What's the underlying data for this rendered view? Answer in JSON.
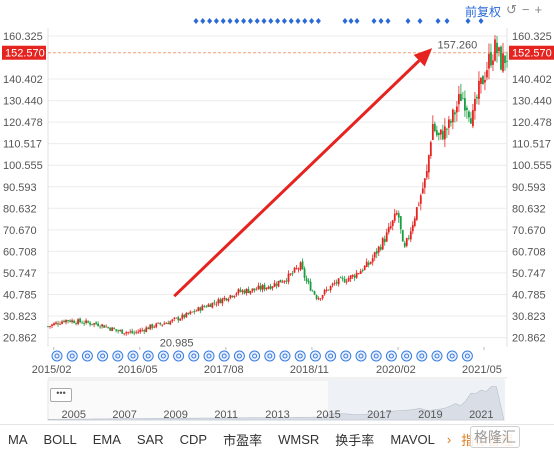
{
  "header": {
    "adjust_label": "前复权",
    "icons": [
      "undo-icon",
      "minus-icon",
      "plus-icon"
    ]
  },
  "chart_data": {
    "type": "candlestick",
    "x_tick_labels": [
      "2015/02",
      "2016/05",
      "2017/08",
      "2018/11",
      "2020/02",
      "2021/05"
    ],
    "y_ticks": [
      160.325,
      140.402,
      130.44,
      120.478,
      110.517,
      100.555,
      90.593,
      80.632,
      70.67,
      60.708,
      50.747,
      40.785,
      30.823,
      20.862
    ],
    "y_ticks_left": [
      160.325,
      140.402,
      130.44,
      120.478,
      110.517,
      100.555,
      90.593,
      80.632,
      70.67,
      60.708,
      50.747,
      40.785,
      30.823,
      20.862
    ],
    "y_ticks_right": [
      160.325,
      140.402,
      130.44,
      120.478,
      110.517,
      100.555,
      90.593,
      80.632,
      70.67,
      60.708,
      50.747,
      40.785,
      30.823,
      20.862
    ],
    "y_tick_labels": [
      "160.325",
      "140.402",
      "130.440",
      "120.478",
      "110.517",
      "100.555",
      "90.593",
      "80.632",
      "70.670",
      "60.708",
      "50.747",
      "40.785",
      "30.823",
      "20.862"
    ],
    "ylim": [
      16.5,
      164.0
    ],
    "current_price": 152.57,
    "current_price_label": "152.570",
    "max_label": "157.260",
    "max_value": 157.26,
    "min_label": "20.985",
    "min_value": 20.985,
    "trend_points": [
      [
        "2015/01",
        26
      ],
      [
        "2015/04",
        29
      ],
      [
        "2015/07",
        28
      ],
      [
        "2015/10",
        27
      ],
      [
        "2016/01",
        24
      ],
      [
        "2016/04",
        23
      ],
      [
        "2016/07",
        26
      ],
      [
        "2016/10",
        28
      ],
      [
        "2017/01",
        31
      ],
      [
        "2017/04",
        35
      ],
      [
        "2017/07",
        38
      ],
      [
        "2017/10",
        42
      ],
      [
        "2018/01",
        43
      ],
      [
        "2018/04",
        45
      ],
      [
        "2018/07",
        49
      ],
      [
        "2018/09",
        54
      ],
      [
        "2018/10",
        47
      ],
      [
        "2018/12",
        39
      ],
      [
        "2019/03",
        46
      ],
      [
        "2019/06",
        49
      ],
      [
        "2019/09",
        55
      ],
      [
        "2019/12",
        68
      ],
      [
        "2020/02",
        79
      ],
      [
        "2020/03",
        60
      ],
      [
        "2020/05",
        78
      ],
      [
        "2020/07",
        96
      ],
      [
        "2020/08",
        120
      ],
      [
        "2020/09",
        113
      ],
      [
        "2020/11",
        119
      ],
      [
        "2021/01",
        133
      ],
      [
        "2021/02",
        129
      ],
      [
        "2021/03",
        122
      ],
      [
        "2021/04",
        134
      ],
      [
        "2021/06",
        150
      ],
      [
        "2021/07",
        155
      ],
      [
        "2021/08",
        148
      ],
      [
        "2021/09",
        151
      ]
    ],
    "annotation": {
      "type": "arrow",
      "color": "#e52420",
      "from": [
        "2016/11",
        40
      ],
      "to": [
        "2020/09",
        157
      ]
    },
    "nav_years": [
      "2005",
      "2007",
      "2009",
      "2011",
      "2013",
      "2015",
      "2017",
      "2019",
      "2021"
    ]
  },
  "toolbar": {
    "items": [
      "MA",
      "BOLL",
      "EMA",
      "SAR",
      "CDP",
      "市盈率",
      "WMSR",
      "换手率",
      "MAVOL"
    ],
    "arrow": "›",
    "active_item": "指标管理"
  },
  "watermark": "格隆汇",
  "colors": {
    "up": "#e52420",
    "down": "#1a9e3f",
    "grid": "#ececec",
    "accent": "#2a6ad8",
    "price_line": "#f2a078"
  }
}
